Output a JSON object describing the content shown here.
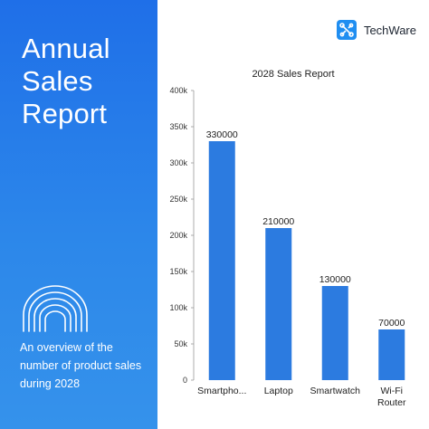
{
  "left_panel": {
    "headline_lines": [
      "Annual",
      "Sales",
      "Report"
    ],
    "description": "An overview of the number of product sales during 2028",
    "gradient_colors": [
      "#1f6fe8",
      "#3592eb"
    ],
    "icon": "rainbow-arches-icon"
  },
  "brand": {
    "name": "TechWare",
    "logo_icon": "molecule-logo-icon",
    "logo_color": "#1f8ef1"
  },
  "chart_data": {
    "type": "bar",
    "title": "2028 Sales Report",
    "categories": [
      "Smartpho...",
      "Laptop",
      "Smartwatch",
      "Wi-Fi Router"
    ],
    "values": [
      330000,
      210000,
      130000,
      70000
    ],
    "data_labels": [
      "330000",
      "210000",
      "130000",
      "70000"
    ],
    "ylim": [
      0,
      400000
    ],
    "yticks": [
      0,
      50000,
      100000,
      150000,
      200000,
      250000,
      300000,
      350000,
      400000
    ],
    "ytick_labels": [
      "0",
      "50k",
      "100k",
      "150k",
      "200k",
      "250k",
      "300k",
      "350k",
      "400k"
    ],
    "xlabel": "",
    "ylabel": "",
    "bar_color": "#2c7be0",
    "grid": false,
    "legend": false
  }
}
